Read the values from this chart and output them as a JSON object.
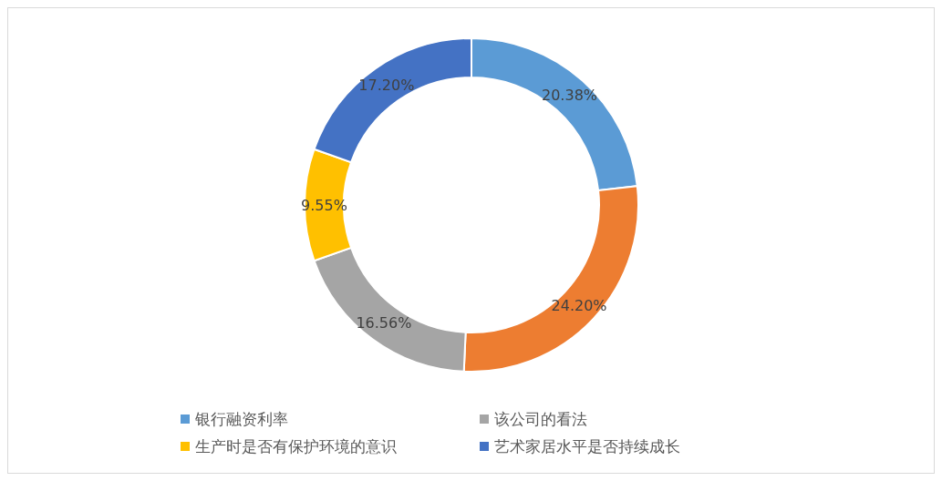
{
  "chart_data": {
    "type": "donut",
    "categories": [
      "银行融资利率",
      null,
      "该公司的看法",
      "生产时是否有保护环境的意识",
      "艺术家居水平是否持续成长"
    ],
    "values": [
      20.38,
      24.2,
      16.56,
      9.55,
      17.2
    ],
    "colors": [
      "#5b9bd5",
      "#ed7d31",
      "#a5a5a5",
      "#ffc000",
      "#4472c4"
    ],
    "value_labels": [
      "20.38%",
      "24.20%",
      "16.56%",
      "9.55%",
      "17.20%"
    ],
    "legend": "bottom"
  }
}
